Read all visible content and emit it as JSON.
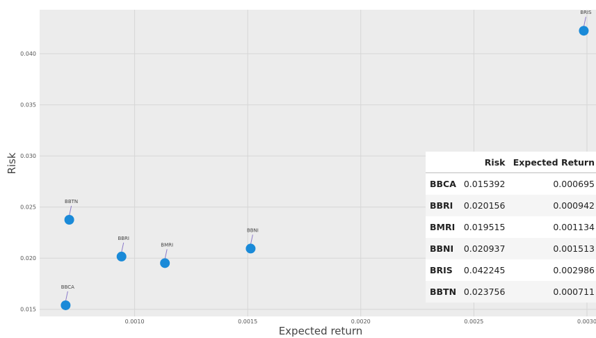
{
  "chart_data": {
    "type": "scatter",
    "xlabel": "Expected return",
    "ylabel": "Risk",
    "xlim": [
      0.00058,
      0.00304
    ],
    "ylim": [
      0.0143,
      0.0443
    ],
    "x_ticks": [
      "0.0010",
      "0.0015",
      "0.0020",
      "0.0025",
      "0.0030"
    ],
    "y_ticks": [
      "0.015",
      "0.020",
      "0.025",
      "0.030",
      "0.035",
      "0.040"
    ],
    "grid": true,
    "point_color": "#1a8ad8",
    "points": [
      {
        "label": "BBCA",
        "x": 0.000695,
        "y": 0.015392
      },
      {
        "label": "BBRI",
        "x": 0.000942,
        "y": 0.020156
      },
      {
        "label": "BMRI",
        "x": 0.001134,
        "y": 0.019515
      },
      {
        "label": "BBNI",
        "x": 0.001513,
        "y": 0.020937
      },
      {
        "label": "BRIS",
        "x": 0.002986,
        "y": 0.042245
      },
      {
        "label": "BBTN",
        "x": 0.000711,
        "y": 0.023756
      }
    ]
  },
  "table": {
    "headers": [
      "",
      "Risk",
      "Expected Return"
    ],
    "rows": [
      [
        "BBCA",
        "0.015392",
        "0.000695"
      ],
      [
        "BBRI",
        "0.020156",
        "0.000942"
      ],
      [
        "BMRI",
        "0.019515",
        "0.001134"
      ],
      [
        "BBNI",
        "0.020937",
        "0.001513"
      ],
      [
        "BRIS",
        "0.042245",
        "0.002986"
      ],
      [
        "BBTN",
        "0.023756",
        "0.000711"
      ]
    ]
  }
}
